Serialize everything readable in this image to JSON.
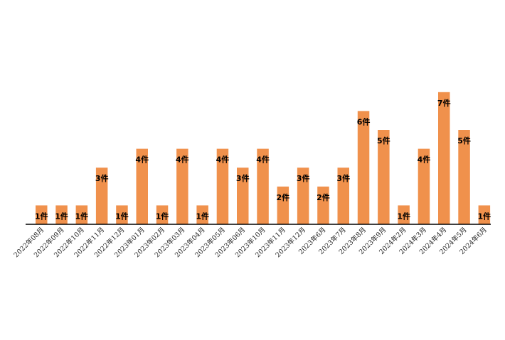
{
  "chart_data": {
    "type": "bar",
    "categories": [
      "2022年08月",
      "2022年09月",
      "2022年10月",
      "2022年11月",
      "2022年12月",
      "2023年01月",
      "2023年02月",
      "2023年03月",
      "2023年04月",
      "2023年05月",
      "2023年06月",
      "2023年10月",
      "2023年11月",
      "2023年12月",
      "2023年6月",
      "2023年7月",
      "2023年8月",
      "2023年9月",
      "2024年2月",
      "2024年3月",
      "2024年4月",
      "2024年5月",
      "2024年6月"
    ],
    "values": [
      1,
      1,
      1,
      3,
      1,
      4,
      1,
      4,
      1,
      4,
      3,
      4,
      2,
      3,
      2,
      3,
      6,
      5,
      1,
      4,
      7,
      5,
      1
    ],
    "data_labels": [
      "1件",
      "1件",
      "1件",
      "3件",
      "1件",
      "4件",
      "1件",
      "4件",
      "1件",
      "4件",
      "3件",
      "4件",
      "2件",
      "3件",
      "2件",
      "3件",
      "6件",
      "5件",
      "1件",
      "4件",
      "7件",
      "5件",
      "1件"
    ],
    "ylim": [
      0,
      7
    ],
    "grid": false,
    "colors": {
      "bar": "#F0914C",
      "axis": "#000000"
    }
  }
}
